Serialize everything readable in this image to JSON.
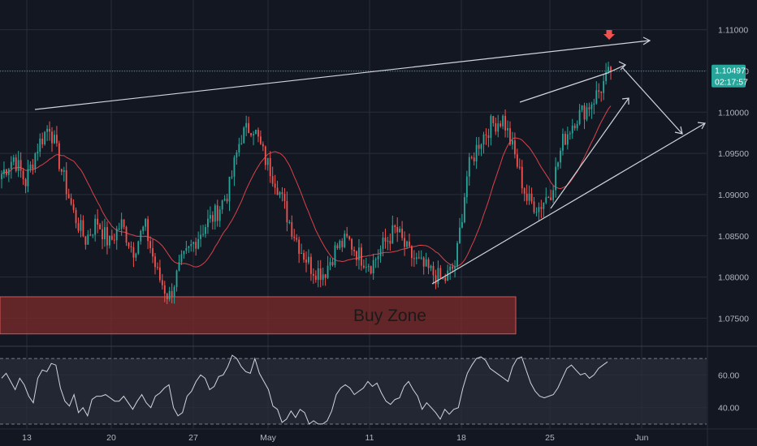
{
  "colors": {
    "background": "#131722",
    "grid": "#2a2e39",
    "up": "#26a69a",
    "down": "#ef5350",
    "ma": "#d8424a",
    "rsi": "#d1d4dc",
    "rsi_band": "#2a2e39",
    "trendline": "#d1d4dc",
    "zone_fill": "#7a2a2a",
    "zone_stroke": "#d25656",
    "current_price": "#26a69a",
    "marker": "#ef5350"
  },
  "chart_data": [
    {
      "type": "candlestick",
      "instrument_timeframe": "",
      "x_tick_labels": [
        "13",
        "20",
        "27",
        "May",
        "11",
        "18",
        "25",
        "Jun"
      ],
      "y_ticks": [
        1.075,
        1.08,
        1.085,
        1.09,
        1.095,
        1.1,
        1.105,
        1.11
      ],
      "y_tick_labels": [
        "1.07500",
        "1.08000",
        "1.08500",
        "1.09000",
        "1.09500",
        "1.10000",
        "1.10500",
        "1.11000"
      ],
      "ylim": [
        1.0716,
        1.1136
      ],
      "current_price": {
        "value": 1.10497,
        "label": "1.10497",
        "countdown": "02:17:57"
      },
      "price_anchors": [
        1.0925,
        1.0945,
        1.0915,
        1.0958,
        1.0985,
        1.093,
        1.0878,
        1.0845,
        1.0868,
        1.084,
        1.0865,
        1.0832,
        1.0862,
        1.0805,
        1.0775,
        1.0815,
        1.084,
        1.0862,
        1.0878,
        1.0905,
        1.097,
        1.0985,
        1.0945,
        1.0915,
        1.087,
        1.0835,
        1.081,
        1.0805,
        1.0835,
        1.0845,
        1.0825,
        1.0815,
        1.084,
        1.0858,
        1.083,
        1.0815,
        1.0805,
        1.0795,
        1.0815,
        1.0928,
        1.0965,
        1.0985,
        1.0992,
        1.0945,
        1.0893,
        1.0885,
        1.0905,
        1.0965,
        1.0992,
        1.1005,
        1.1025,
        1.1049
      ],
      "zone": {
        "label": "Buy Zone",
        "low": 1.0731,
        "high": 1.0776
      },
      "moving_average": {
        "period": 20
      },
      "marker": {
        "shape": "down-arrow",
        "position": "above last high"
      },
      "annotations": "trendlines: upper resistance from April high to late May; rising support from mid-May low; projected arrows toward 1.097"
    },
    {
      "type": "line",
      "indicator": "RSI",
      "y_ticks": [
        40,
        60
      ],
      "y_tick_labels": [
        "40.00",
        "60.00"
      ],
      "band": [
        30,
        70
      ],
      "ylim": [
        27,
        77
      ],
      "values": [
        58,
        61,
        56,
        51,
        58,
        54,
        47,
        43,
        58,
        63,
        62,
        67,
        66,
        52,
        44,
        41,
        48,
        37,
        40,
        35,
        45,
        47,
        47,
        48,
        46,
        44,
        44,
        47,
        43,
        39,
        44,
        48,
        43,
        40,
        47,
        49,
        52,
        54,
        40,
        35,
        37,
        47,
        50,
        56,
        60,
        58,
        51,
        53,
        59,
        60,
        65,
        72,
        70,
        65,
        62,
        61,
        70,
        61,
        56,
        51,
        41,
        39,
        31,
        33,
        38,
        34,
        39,
        37,
        30,
        32,
        30,
        30,
        32,
        38,
        48,
        52,
        54,
        52,
        48,
        50,
        52,
        56,
        53,
        55,
        49,
        44,
        42,
        45,
        46,
        53,
        56,
        51,
        47,
        39,
        43,
        40,
        37,
        33,
        39,
        36,
        39,
        40,
        52,
        61,
        66,
        70,
        71,
        69,
        64,
        62,
        60,
        58,
        56,
        65,
        70,
        71,
        63,
        55,
        50,
        47,
        46,
        47,
        48,
        52,
        58,
        64,
        66,
        63,
        60,
        61,
        58,
        60,
        64,
        66,
        68
      ]
    }
  ]
}
